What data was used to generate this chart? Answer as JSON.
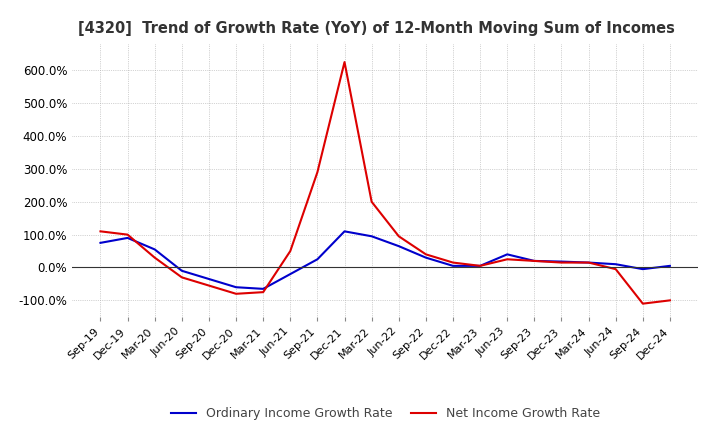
{
  "title": "[4320]  Trend of Growth Rate (YoY) of 12-Month Moving Sum of Incomes",
  "ylim": [
    -150,
    680
  ],
  "yticks": [
    -100,
    0,
    100,
    200,
    300,
    400,
    500,
    600
  ],
  "background_color": "#ffffff",
  "grid_color": "#aaaaaa",
  "legend_labels": [
    "Ordinary Income Growth Rate",
    "Net Income Growth Rate"
  ],
  "line_colors": [
    "#0000cc",
    "#dd0000"
  ],
  "x_labels": [
    "Sep-19",
    "Dec-19",
    "Mar-20",
    "Jun-20",
    "Sep-20",
    "Dec-20",
    "Mar-21",
    "Jun-21",
    "Sep-21",
    "Dec-21",
    "Mar-22",
    "Jun-22",
    "Sep-22",
    "Dec-22",
    "Mar-23",
    "Jun-23",
    "Sep-23",
    "Dec-23",
    "Mar-24",
    "Jun-24",
    "Sep-24",
    "Dec-24"
  ],
  "ordinary_income": [
    75,
    90,
    55,
    -10,
    -35,
    -60,
    -65,
    -20,
    25,
    110,
    95,
    65,
    30,
    5,
    5,
    40,
    20,
    18,
    15,
    10,
    -5,
    5
  ],
  "net_income": [
    110,
    100,
    30,
    -30,
    -55,
    -80,
    -75,
    50,
    290,
    625,
    200,
    95,
    40,
    15,
    5,
    25,
    20,
    15,
    15,
    -5,
    -110,
    -100
  ]
}
